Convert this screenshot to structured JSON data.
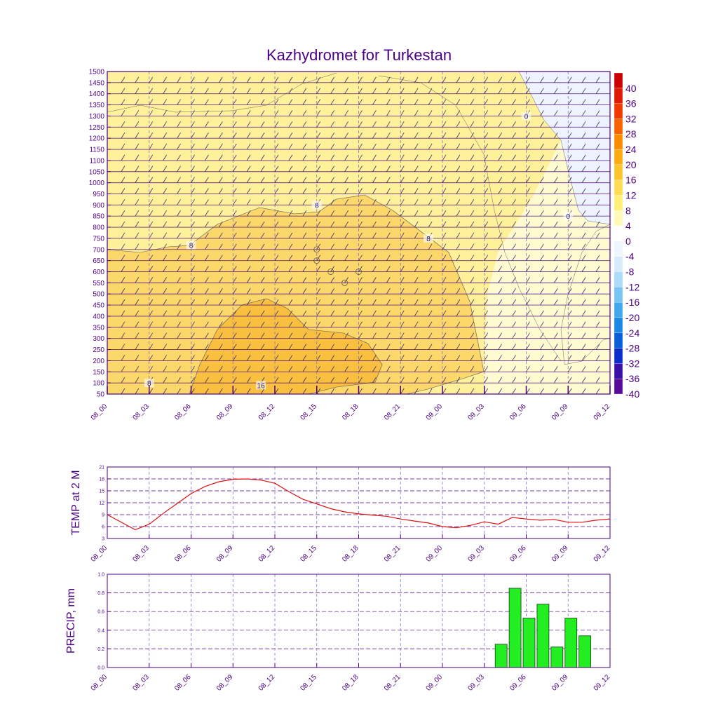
{
  "chart_data": [
    {
      "type": "heatmap",
      "title": "Kazhydromet for Turkestan",
      "x_ticks": [
        "08_00",
        "08_03",
        "08_06",
        "08_09",
        "08_12",
        "08_15",
        "08_18",
        "08_21",
        "09_00",
        "09_03",
        "09_06",
        "09_09",
        "09_12"
      ],
      "y_ticks": [
        50,
        100,
        150,
        200,
        250,
        300,
        350,
        400,
        450,
        500,
        550,
        600,
        650,
        700,
        750,
        800,
        850,
        900,
        950,
        1000,
        1050,
        1100,
        1150,
        1200,
        1250,
        1300,
        1350,
        1400,
        1450,
        1500
      ],
      "ylim": [
        50,
        1500
      ],
      "colorbar": {
        "labels": [
          40,
          36,
          32,
          28,
          24,
          20,
          16,
          12,
          8,
          4,
          0,
          -4,
          -8,
          -12,
          -16,
          -20,
          -24,
          -28,
          -32,
          -36,
          -40
        ],
        "colors": [
          "#cc0000",
          "#e01a00",
          "#f03a00",
          "#f86200",
          "#fa8a00",
          "#fbab10",
          "#fcc52e",
          "#fedc54",
          "#fff07a",
          "#fffab8",
          "#ffffff",
          "#eef6ff",
          "#d6ecfc",
          "#aadcf8",
          "#78c4f2",
          "#40a8ec",
          "#1a88e4",
          "#0a5ed8",
          "#0a2ecc",
          "#3a10a8",
          "#5a0a98"
        ]
      },
      "contour_labels": [
        {
          "text": "0",
          "x": "09_06",
          "y": 1300
        },
        {
          "text": "0",
          "x": "09_09",
          "y": 850
        },
        {
          "text": "8",
          "x": "08_15",
          "y": 900
        },
        {
          "text": "8",
          "x": "08_06",
          "y": 720
        },
        {
          "text": "8",
          "x": "08_23",
          "y": 750
        },
        {
          "text": "8",
          "x": "08_03",
          "y": 100
        },
        {
          "text": "16",
          "x": "08_11",
          "y": 90
        }
      ],
      "contour_levels": [
        0,
        8,
        16
      ],
      "fill_colors": {
        "cold": "#eef4ff",
        "cool": "#fffbd0",
        "mild": "#fff09a",
        "warm": "#fcd86a",
        "hot": "#f9c040"
      },
      "grid": true,
      "wind_barbs": true
    },
    {
      "type": "line",
      "ylabel": "TEMP at 2 M",
      "x_ticks": [
        "08_00",
        "08_03",
        "08_06",
        "08_09",
        "08_12",
        "08_15",
        "08_18",
        "08_21",
        "09_00",
        "09_03",
        "09_06",
        "09_09",
        "09_12"
      ],
      "y_ticks": [
        3,
        6,
        9,
        12,
        15,
        18,
        21
      ],
      "ylim": [
        3,
        21
      ],
      "x_hours": [
        0,
        2,
        3,
        4,
        5,
        6,
        7,
        8,
        9,
        10,
        11,
        12,
        13,
        14,
        15,
        16,
        17,
        18,
        19,
        20,
        21,
        22,
        23,
        24,
        25,
        26,
        27,
        28,
        29,
        30,
        31,
        32,
        33,
        34,
        35,
        36
      ],
      "values": [
        9.0,
        5.2,
        6.6,
        9.3,
        11.8,
        14.3,
        16.1,
        17.3,
        17.9,
        18.0,
        17.7,
        16.9,
        14.8,
        12.9,
        11.7,
        10.5,
        9.7,
        9.2,
        8.9,
        8.6,
        7.9,
        7.4,
        6.9,
        6.0,
        5.7,
        6.3,
        7.2,
        6.6,
        8.3,
        7.9,
        7.6,
        7.8,
        7.1,
        7.1,
        7.6,
        7.9
      ],
      "line_color": "#dd1111",
      "grid": true
    },
    {
      "type": "bar",
      "ylabel": "PRECIP, mm",
      "x_ticks": [
        "08_00",
        "08_03",
        "08_06",
        "08_09",
        "08_12",
        "08_15",
        "08_18",
        "08_21",
        "09_00",
        "09_03",
        "09_06",
        "09_09",
        "09_12"
      ],
      "y_ticks": [
        "0.0",
        "0.2",
        "0.4",
        "0.6",
        "0.8",
        "1.0"
      ],
      "ylim": [
        0,
        1.0
      ],
      "x_hours": [
        28,
        29,
        30,
        31,
        32,
        33,
        34
      ],
      "values": [
        0.25,
        0.85,
        0.53,
        0.68,
        0.22,
        0.53,
        0.34
      ],
      "bar_color": "#22ee22",
      "grid": true
    }
  ]
}
